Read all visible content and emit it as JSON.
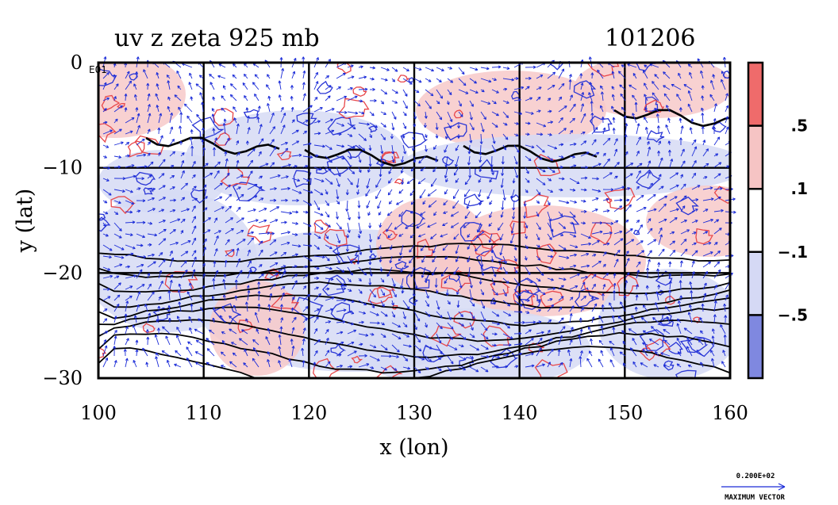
{
  "chart_data": {
    "type": "heatmap",
    "title": "uv z zeta 925 mb",
    "date_label": "101206",
    "corner_label": "E01",
    "xlabel": "x (lon)",
    "ylabel": "y (lat)",
    "xlim": [
      100,
      160
    ],
    "ylim": [
      -30,
      0
    ],
    "xticks": [
      "100",
      "110",
      "120",
      "130",
      "140",
      "150",
      "160"
    ],
    "yticks": [
      "0",
      "−10",
      "−20",
      "−30"
    ],
    "x_tick_values": [
      100,
      110,
      120,
      130,
      140,
      150,
      160
    ],
    "y_tick_values": [
      0,
      -10,
      -20,
      -30
    ],
    "grid": true,
    "colorbar": {
      "placement": "right",
      "levels": [
        ".5",
        ".1",
        "−.1",
        "−.5"
      ],
      "colors": [
        "#ef6b6b",
        "#f6c4c4",
        "#ffffff",
        "#d5d9f5",
        "#7f88e0"
      ]
    },
    "vector_reference": {
      "magnitude": "0.200E+02",
      "label": "MAXIMUM VECTOR"
    },
    "fields": {
      "vorticity_color_positive": "#e8474a",
      "vorticity_color_negative": "#2a36d6",
      "wind_vector_color": "#1a2bd8",
      "height_contour_color": "#000000",
      "background_positive": "#f7c9c9",
      "background_negative": "#d6daf4"
    }
  }
}
